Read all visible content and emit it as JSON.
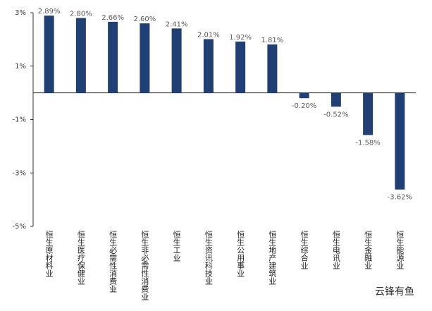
{
  "chart_data": {
    "type": "bar",
    "categories": [
      "恒生原材料业",
      "恒生医疗保健业",
      "恒生必需性消费业",
      "恒生非必需性消费业",
      "恒生工业",
      "恒生资讯科技业",
      "恒生公用事业",
      "恒生地产建筑业",
      "恒生综合业",
      "恒生电讯业",
      "恒生金融业",
      "恒生能源业"
    ],
    "values": [
      2.89,
      2.8,
      2.66,
      2.6,
      2.41,
      2.01,
      1.92,
      1.81,
      -0.2,
      -0.52,
      -1.58,
      -3.62
    ],
    "value_labels": [
      "2.89%",
      "2.80%",
      "2.66%",
      "2.60%",
      "2.41%",
      "2.01%",
      "1.92%",
      "1.81%",
      "-0.20%",
      "-0.52%",
      "-1.58%",
      "-3.62%"
    ],
    "color": "#203f74",
    "ylim": [
      -5,
      3
    ],
    "yticks": [
      {
        "value": 3,
        "label": "3%"
      },
      {
        "value": 1,
        "label": "1%"
      },
      {
        "value": -1,
        "label": "-1%"
      },
      {
        "value": -3,
        "label": "-3%"
      },
      {
        "value": -5,
        "label": "-5%"
      }
    ],
    "grid": false
  },
  "watermark": "云锋有鱼"
}
